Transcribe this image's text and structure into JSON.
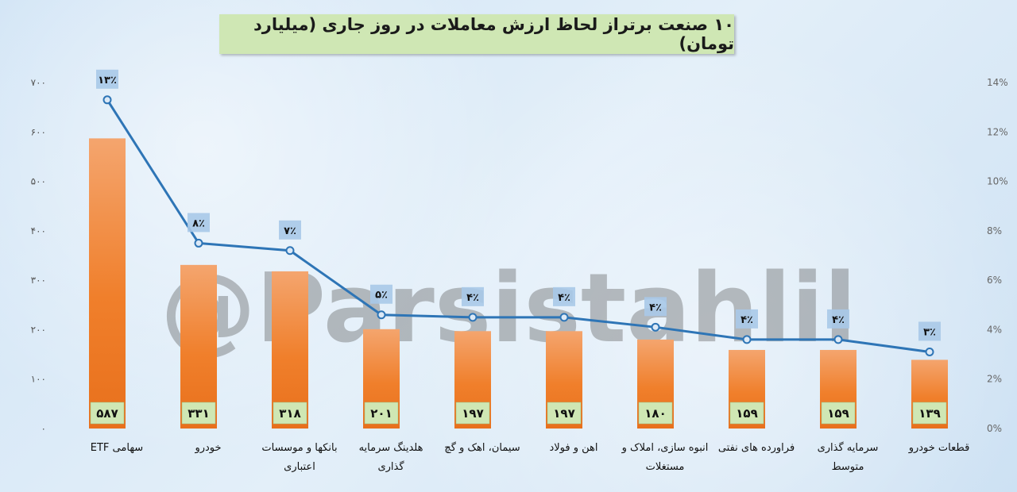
{
  "title": "۱۰ صنعت برتراز لحاظ ارزش معاملات در روز جاری (میلیارد تومان)",
  "watermark": "@Parsistahlil",
  "chart_data": {
    "type": "bar",
    "title": "۱۰ صنعت برتراز لحاظ ارزش معاملات در روز جاری (میلیارد تومان)",
    "categories": [
      [
        "سهامی ETF"
      ],
      [
        "خودرو"
      ],
      [
        "بانکها و موسسات",
        "اعتباری"
      ],
      [
        "هلدینگ سرمایه",
        "گذاری"
      ],
      [
        "سیمان، اهک و گچ"
      ],
      [
        "اهن و فولاد"
      ],
      [
        "انبوه سازی، املاک و",
        "مستغلات"
      ],
      [
        "فراورده های نفتی"
      ],
      [
        "سرمایه گذاری",
        "متوسط"
      ],
      [
        "قطعات خودرو"
      ]
    ],
    "series": [
      {
        "type": "bar",
        "values": [
          587,
          331,
          318,
          201,
          197,
          197,
          180,
          159,
          159,
          139
        ],
        "labels": [
          "۵۸۷",
          "۳۳۱",
          "۳۱۸",
          "۲۰۱",
          "۱۹۷",
          "۱۹۷",
          "۱۸۰",
          "۱۵۹",
          "۱۵۹",
          "۱۳۹"
        ],
        "color": "#f07f2b"
      },
      {
        "type": "line",
        "axis": "right",
        "values": [
          13.3,
          7.5,
          7.2,
          4.6,
          4.5,
          4.5,
          4.1,
          3.6,
          3.6,
          3.1
        ],
        "labels": [
          "۱۳٪",
          "۸٪",
          "۷٪",
          "۵٪",
          "۴٪",
          "۴٪",
          "۴٪",
          "۴٪",
          "۴٪",
          "۳٪"
        ],
        "color": "#2e75b6"
      }
    ],
    "y_left": {
      "min": 0,
      "max": 700,
      "ticks": [
        "۰",
        "۱۰۰",
        "۲۰۰",
        "۳۰۰",
        "۴۰۰",
        "۵۰۰",
        "۶۰۰",
        "۷۰۰"
      ]
    },
    "y_right": {
      "min": 0,
      "max": 14,
      "ticks": [
        "0%",
        "2%",
        "4%",
        "6%",
        "8%",
        "10%",
        "12%",
        "14%"
      ]
    },
    "grid": false,
    "legend": "none"
  }
}
